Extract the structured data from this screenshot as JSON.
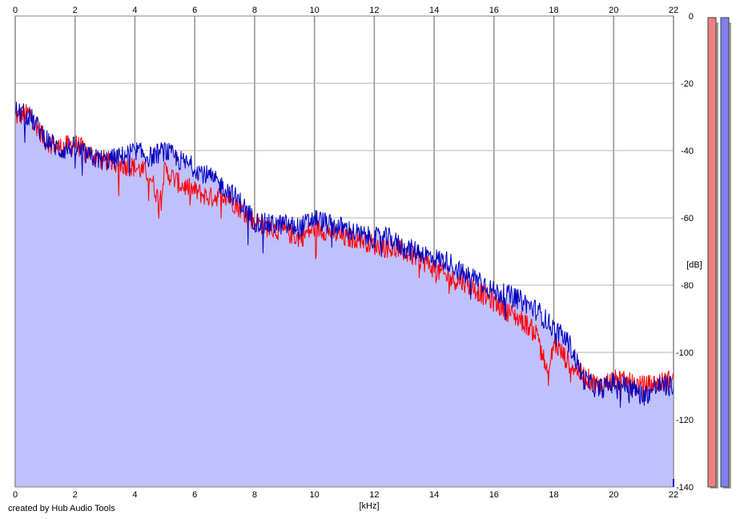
{
  "credit": "created by Hub Audio Tools",
  "chart_data": {
    "type": "area",
    "xlabel": "[kHz]",
    "ylabel": "[dB]",
    "xlim": [
      0,
      22
    ],
    "ylim": [
      -140,
      0
    ],
    "grid": true,
    "x_ticks": [
      0,
      2,
      4,
      6,
      8,
      10,
      12,
      14,
      16,
      18,
      20,
      22
    ],
    "x_tick_labels": [
      "0",
      "2",
      "4",
      "6",
      "8",
      "10",
      "12",
      "14",
      "16",
      "18",
      "20",
      "22"
    ],
    "y_ticks": [
      0,
      -20,
      -40,
      -60,
      -80,
      -100,
      -120,
      -140
    ],
    "y_tick_labels": [
      "0",
      "-20",
      "-40",
      "-60",
      "-80",
      "-100",
      "-120",
      "-140"
    ],
    "fill_color": "#c0c0ff",
    "series": [
      {
        "color": "#ff0000",
        "x": [
          0,
          0.5,
          1,
          1.5,
          2,
          2.5,
          3,
          3.5,
          4,
          4.5,
          4.8,
          5,
          5.5,
          6,
          6.5,
          7,
          7.5,
          8,
          8.5,
          9,
          9.5,
          10,
          10.5,
          11,
          11.5,
          12,
          12.5,
          13,
          13.5,
          14,
          14.5,
          15,
          15.5,
          16,
          16.5,
          17,
          17.5,
          17.8,
          18,
          18.5,
          19,
          19.5,
          20,
          20.5,
          21,
          21.5,
          22
        ],
        "y": [
          -30,
          -29,
          -37,
          -39,
          -38,
          -41,
          -43,
          -44,
          -45,
          -47,
          -55,
          -46,
          -50,
          -52,
          -54,
          -53,
          -57,
          -61,
          -63,
          -64,
          -66,
          -63,
          -64,
          -66,
          -66,
          -68,
          -69,
          -70,
          -72,
          -75,
          -78,
          -79,
          -82,
          -85,
          -88,
          -91,
          -95,
          -108,
          -97,
          -103,
          -107,
          -110,
          -108,
          -109,
          -110,
          -109,
          -108
        ]
      },
      {
        "color": "#0000c0",
        "x": [
          0,
          0.5,
          1,
          1.5,
          2,
          2.5,
          3,
          3.5,
          4,
          4.5,
          5,
          5.5,
          6,
          6.5,
          7,
          7.5,
          8,
          8.5,
          9,
          9.5,
          10,
          10.5,
          11,
          11.5,
          12,
          12.5,
          13,
          13.5,
          14,
          14.5,
          15,
          15.5,
          16,
          16.5,
          17,
          17.5,
          18,
          18.5,
          19,
          19.5,
          20,
          20.5,
          21,
          21.5,
          22
        ],
        "y": [
          -28,
          -30,
          -36,
          -40,
          -39,
          -42,
          -43,
          -42,
          -40,
          -42,
          -40,
          -43,
          -45,
          -48,
          -51,
          -55,
          -61,
          -62,
          -62,
          -63,
          -60,
          -62,
          -63,
          -65,
          -66,
          -66,
          -69,
          -70,
          -72,
          -73,
          -77,
          -78,
          -82,
          -83,
          -85,
          -88,
          -93,
          -97,
          -108,
          -111,
          -109,
          -110,
          -113,
          -110,
          -110
        ]
      }
    ]
  },
  "level_meters": [
    {
      "color": "#f08080",
      "value_db": 0
    },
    {
      "color": "#8080f0",
      "value_db": 0
    }
  ]
}
